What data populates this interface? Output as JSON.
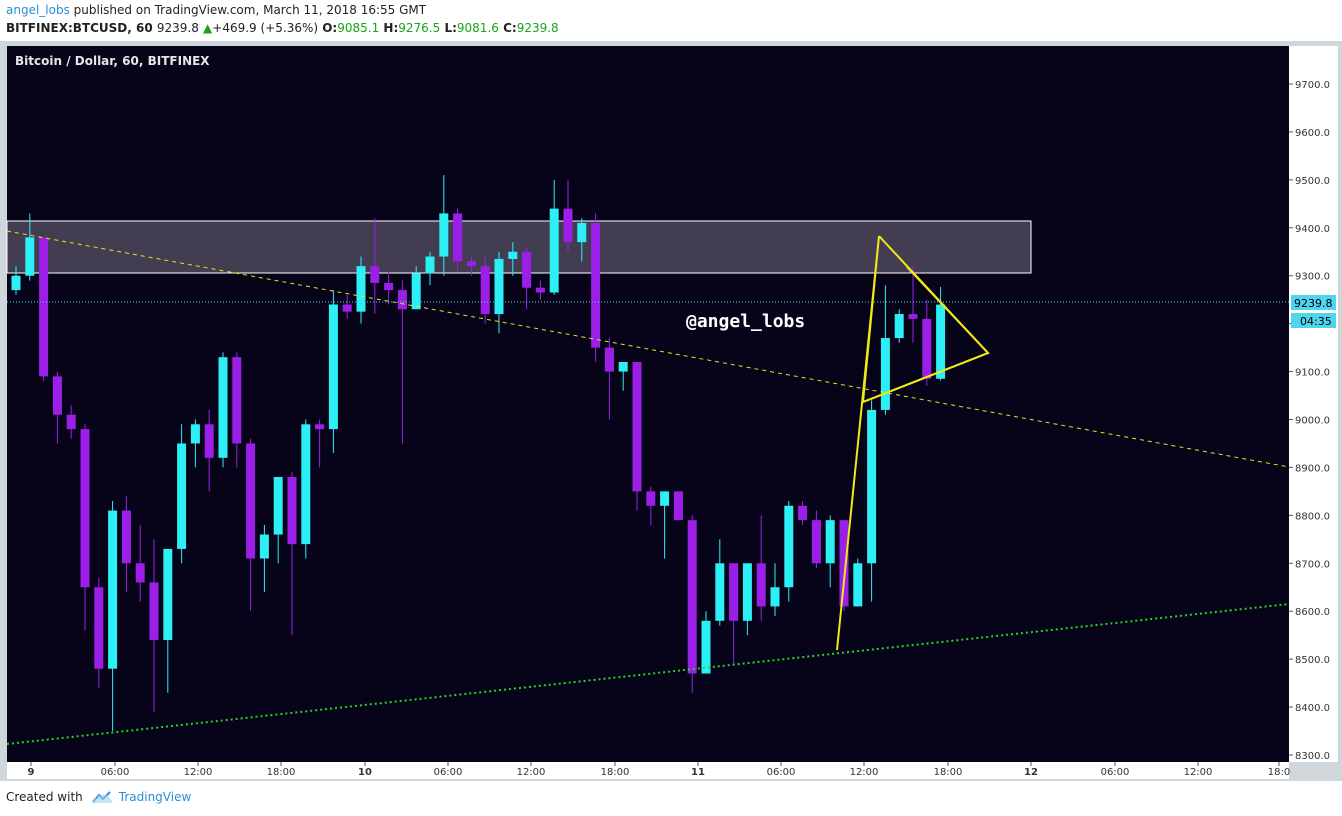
{
  "header": {
    "author": "angel_lobs",
    "published": "published on TradingView.com, March 11, 2018 16:55 GMT",
    "symbol": "BITFINEX:BTCUSD, 60",
    "last": "9239.8",
    "change": "+469.9 (+5.36%)",
    "o_label": "O:",
    "o": "9085.1",
    "h_label": "H:",
    "h": "9276.5",
    "l_label": "L:",
    "l": "9081.6",
    "c_label": "C:",
    "c": "9239.8"
  },
  "chart_title": "Bitcoin / Dollar, 60, BITFINEX",
  "watermark": "@angel_lobs",
  "price_label": "9239.8",
  "countdown_label": "04:35",
  "footer": {
    "created_with": "Created with",
    "brand": "TradingView"
  },
  "colors": {
    "bg": "#070318",
    "up": "#2cf0f5",
    "down": "#9c1fe8",
    "zone": "#4a4458",
    "support": "#21d81e",
    "trend": "#e8e320",
    "triangle": "#f1e81a",
    "price_line": "#4fd5ee"
  },
  "chart_data": {
    "type": "candlestick",
    "title": "Bitcoin / Dollar, 60, BITFINEX",
    "y_ticks": [
      8300,
      8400,
      8500,
      8600,
      8700,
      8800,
      8900,
      9000,
      9100,
      9200,
      9300,
      9400,
      9500,
      9600,
      9700
    ],
    "ylim": [
      8290,
      9760
    ],
    "x_ticks": [
      "9",
      "06:00",
      "12:00",
      "18:00",
      "10",
      "06:00",
      "12:00",
      "18:00",
      "11",
      "06:00",
      "12:00",
      "18:00",
      "12",
      "06:00",
      "12:00",
      "18:0"
    ],
    "current_price": 9239.8,
    "resistance_zone": [
      9300,
      9410
    ],
    "candles": [
      {
        "o": 9270,
        "h": 9320,
        "l": 9260,
        "c": 9300
      },
      {
        "o": 9300,
        "h": 9430,
        "l": 9290,
        "c": 9380
      },
      {
        "o": 9380,
        "h": 9380,
        "l": 9080,
        "c": 9090
      },
      {
        "o": 9090,
        "h": 9100,
        "l": 8950,
        "c": 9010
      },
      {
        "o": 9010,
        "h": 9030,
        "l": 8960,
        "c": 8980
      },
      {
        "o": 8980,
        "h": 8990,
        "l": 8560,
        "c": 8650
      },
      {
        "o": 8650,
        "h": 8670,
        "l": 8440,
        "c": 8480
      },
      {
        "o": 8480,
        "h": 8830,
        "l": 8350,
        "c": 8810
      },
      {
        "o": 8810,
        "h": 8840,
        "l": 8640,
        "c": 8700
      },
      {
        "o": 8700,
        "h": 8780,
        "l": 8620,
        "c": 8660
      },
      {
        "o": 8660,
        "h": 8750,
        "l": 8390,
        "c": 8540
      },
      {
        "o": 8540,
        "h": 8730,
        "l": 8430,
        "c": 8730
      },
      {
        "o": 8730,
        "h": 8990,
        "l": 8700,
        "c": 8950
      },
      {
        "o": 8950,
        "h": 9000,
        "l": 8900,
        "c": 8990
      },
      {
        "o": 8990,
        "h": 9020,
        "l": 8850,
        "c": 8920
      },
      {
        "o": 8920,
        "h": 9140,
        "l": 8900,
        "c": 9130
      },
      {
        "o": 9130,
        "h": 9140,
        "l": 8900,
        "c": 8950
      },
      {
        "o": 8950,
        "h": 8960,
        "l": 8600,
        "c": 8710
      },
      {
        "o": 8710,
        "h": 8780,
        "l": 8640,
        "c": 8760
      },
      {
        "o": 8760,
        "h": 8880,
        "l": 8700,
        "c": 8880
      },
      {
        "o": 8880,
        "h": 8890,
        "l": 8550,
        "c": 8740
      },
      {
        "o": 8740,
        "h": 9000,
        "l": 8710,
        "c": 8990
      },
      {
        "o": 8990,
        "h": 9000,
        "l": 8900,
        "c": 8980
      },
      {
        "o": 8980,
        "h": 9270,
        "l": 8930,
        "c": 9240
      },
      {
        "o": 9240,
        "h": 9260,
        "l": 9210,
        "c": 9225
      },
      {
        "o": 9225,
        "h": 9340,
        "l": 9200,
        "c": 9320
      },
      {
        "o": 9320,
        "h": 9420,
        "l": 9220,
        "c": 9285
      },
      {
        "o": 9285,
        "h": 9310,
        "l": 9240,
        "c": 9270
      },
      {
        "o": 9270,
        "h": 9290,
        "l": 8950,
        "c": 9230
      },
      {
        "o": 9230,
        "h": 9320,
        "l": 9230,
        "c": 9305
      },
      {
        "o": 9305,
        "h": 9350,
        "l": 9280,
        "c": 9340
      },
      {
        "o": 9340,
        "h": 9510,
        "l": 9300,
        "c": 9430
      },
      {
        "o": 9430,
        "h": 9440,
        "l": 9310,
        "c": 9330
      },
      {
        "o": 9330,
        "h": 9340,
        "l": 9300,
        "c": 9320
      },
      {
        "o": 9320,
        "h": 9340,
        "l": 9200,
        "c": 9220
      },
      {
        "o": 9220,
        "h": 9350,
        "l": 9180,
        "c": 9335
      },
      {
        "o": 9335,
        "h": 9370,
        "l": 9300,
        "c": 9350
      },
      {
        "o": 9350,
        "h": 9360,
        "l": 9230,
        "c": 9275
      },
      {
        "o": 9275,
        "h": 9290,
        "l": 9250,
        "c": 9265
      },
      {
        "o": 9265,
        "h": 9500,
        "l": 9260,
        "c": 9440
      },
      {
        "o": 9440,
        "h": 9500,
        "l": 9350,
        "c": 9370
      },
      {
        "o": 9370,
        "h": 9420,
        "l": 9330,
        "c": 9410
      },
      {
        "o": 9410,
        "h": 9430,
        "l": 9120,
        "c": 9150
      },
      {
        "o": 9150,
        "h": 9170,
        "l": 9000,
        "c": 9100
      },
      {
        "o": 9100,
        "h": 9120,
        "l": 9060,
        "c": 9120
      },
      {
        "o": 9120,
        "h": 9120,
        "l": 8810,
        "c": 8850
      },
      {
        "o": 8850,
        "h": 8860,
        "l": 8780,
        "c": 8820
      },
      {
        "o": 8820,
        "h": 8850,
        "l": 8710,
        "c": 8850
      },
      {
        "o": 8850,
        "h": 8850,
        "l": 8790,
        "c": 8790
      },
      {
        "o": 8790,
        "h": 8800,
        "l": 8430,
        "c": 8470
      },
      {
        "o": 8470,
        "h": 8600,
        "l": 8470,
        "c": 8580
      },
      {
        "o": 8580,
        "h": 8750,
        "l": 8570,
        "c": 8700
      },
      {
        "o": 8700,
        "h": 8700,
        "l": 8490,
        "c": 8580
      },
      {
        "o": 8580,
        "h": 8700,
        "l": 8550,
        "c": 8700
      },
      {
        "o": 8700,
        "h": 8800,
        "l": 8580,
        "c": 8610
      },
      {
        "o": 8610,
        "h": 8700,
        "l": 8590,
        "c": 8650
      },
      {
        "o": 8650,
        "h": 8830,
        "l": 8620,
        "c": 8820
      },
      {
        "o": 8820,
        "h": 8830,
        "l": 8780,
        "c": 8790
      },
      {
        "o": 8790,
        "h": 8810,
        "l": 8690,
        "c": 8700
      },
      {
        "o": 8700,
        "h": 8800,
        "l": 8650,
        "c": 8790
      },
      {
        "o": 8790,
        "h": 8790,
        "l": 8600,
        "c": 8610
      },
      {
        "o": 8610,
        "h": 8710,
        "l": 8610,
        "c": 8700
      },
      {
        "o": 8700,
        "h": 9040,
        "l": 8620,
        "c": 9020
      },
      {
        "o": 9020,
        "h": 9280,
        "l": 9010,
        "c": 9170
      },
      {
        "o": 9170,
        "h": 9230,
        "l": 9160,
        "c": 9220
      },
      {
        "o": 9220,
        "h": 9320,
        "l": 9160,
        "c": 9210
      },
      {
        "o": 9210,
        "h": 9250,
        "l": 9070,
        "c": 9085
      },
      {
        "o": 9085,
        "h": 9276.5,
        "l": 9081.6,
        "c": 9239.8
      }
    ]
  }
}
